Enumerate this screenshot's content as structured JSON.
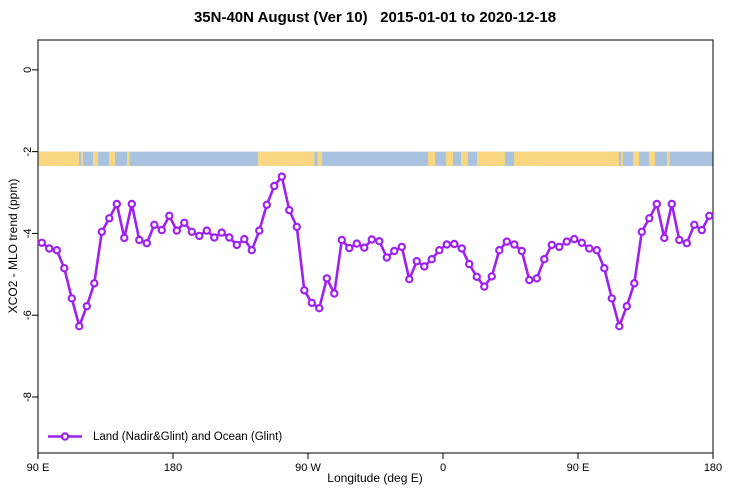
{
  "chart_data": {
    "type": "line",
    "title": "35N-40N August (Ver 10)   2015-01-01 to 2020-12-18",
    "xlabel": "Longitude (deg E)",
    "ylabel": "XCO2 - MLO trend (ppm)",
    "x_axis": {
      "range_deg_from_90E": [
        0,
        450
      ],
      "tick_positions_deg": [
        0,
        90,
        180,
        270,
        360,
        450
      ],
      "tick_labels": [
        "90 E",
        "180",
        "90 W",
        "0",
        "90 E",
        "180"
      ]
    },
    "y_axis": {
      "range": [
        -9.37,
        0.73
      ],
      "ticks": [
        0,
        -2,
        -4,
        -6,
        -8
      ],
      "tick_labels": [
        "0",
        "-2",
        "-4",
        "-6",
        "-8"
      ]
    },
    "grid": "off",
    "legend_position": "bottom-left-inside",
    "legend": [
      {
        "label": "Land (Nadir&Glint) and Ocean (Glint)",
        "color": "#A020F0",
        "marker": "open-circle"
      }
    ],
    "series": [
      {
        "name": "Land (Nadir&Glint) and Ocean (Glint)",
        "color": "#A020F0",
        "x_first_deg": 2.5,
        "x_step_deg": 5,
        "values": [
          -4.23,
          -4.37,
          -4.41,
          -4.85,
          -5.59,
          -6.27,
          -5.78,
          -5.22,
          -3.96,
          -3.63,
          -3.28,
          -4.11,
          -3.28,
          -4.16,
          -4.24,
          -3.79,
          -3.92,
          -3.57,
          -3.93,
          -3.74,
          -3.96,
          -4.06,
          -3.93,
          -4.1,
          -3.98,
          -4.1,
          -4.28,
          -4.14,
          -4.41,
          -3.93,
          -3.3,
          -2.84,
          -2.61,
          -3.43,
          -3.84,
          -5.39,
          -5.7,
          -5.83,
          -5.1,
          -5.47,
          -4.16,
          -4.36,
          -4.25,
          -4.35,
          -4.15,
          -4.19,
          -4.59,
          -4.43,
          -4.33,
          -5.12,
          -4.68,
          -4.81,
          -4.63,
          -4.41,
          -4.27,
          -4.26,
          -4.37,
          -4.75,
          -5.06,
          -5.3,
          -5.05,
          -4.41,
          -4.2,
          -4.27,
          -4.43,
          -5.14,
          -5.1,
          -4.63,
          -4.28,
          -4.33,
          -4.2,
          -4.14,
          -4.23,
          -4.37,
          -4.41,
          -4.85,
          -5.59,
          -6.27,
          -5.78,
          -5.22,
          -3.96,
          -3.63,
          -3.28,
          -4.11,
          -3.28,
          -4.16,
          -4.24,
          -3.79,
          -3.92,
          -3.57
        ]
      }
    ],
    "surface_band": {
      "y_top_ppm": -2.0,
      "y_bottom_ppm": -2.35,
      "ocean_color": "#A9C2DF",
      "land_color": "#F9D781",
      "land_segments_deg": [
        [
          0,
          27.3
        ],
        [
          28.7,
          30
        ],
        [
          36.7,
          40
        ],
        [
          47.3,
          51.3
        ],
        [
          59.3,
          61
        ],
        [
          146.7,
          184.3
        ],
        [
          186.3,
          189.3
        ],
        [
          260,
          264.7
        ],
        [
          272,
          276.7
        ],
        [
          282,
          286.7
        ],
        [
          292.7,
          311.3
        ],
        [
          317.3,
          387.3
        ],
        [
          388.7,
          390
        ],
        [
          396.7,
          400.7
        ],
        [
          407.3,
          411.3
        ],
        [
          419.3,
          421
        ]
      ]
    }
  }
}
